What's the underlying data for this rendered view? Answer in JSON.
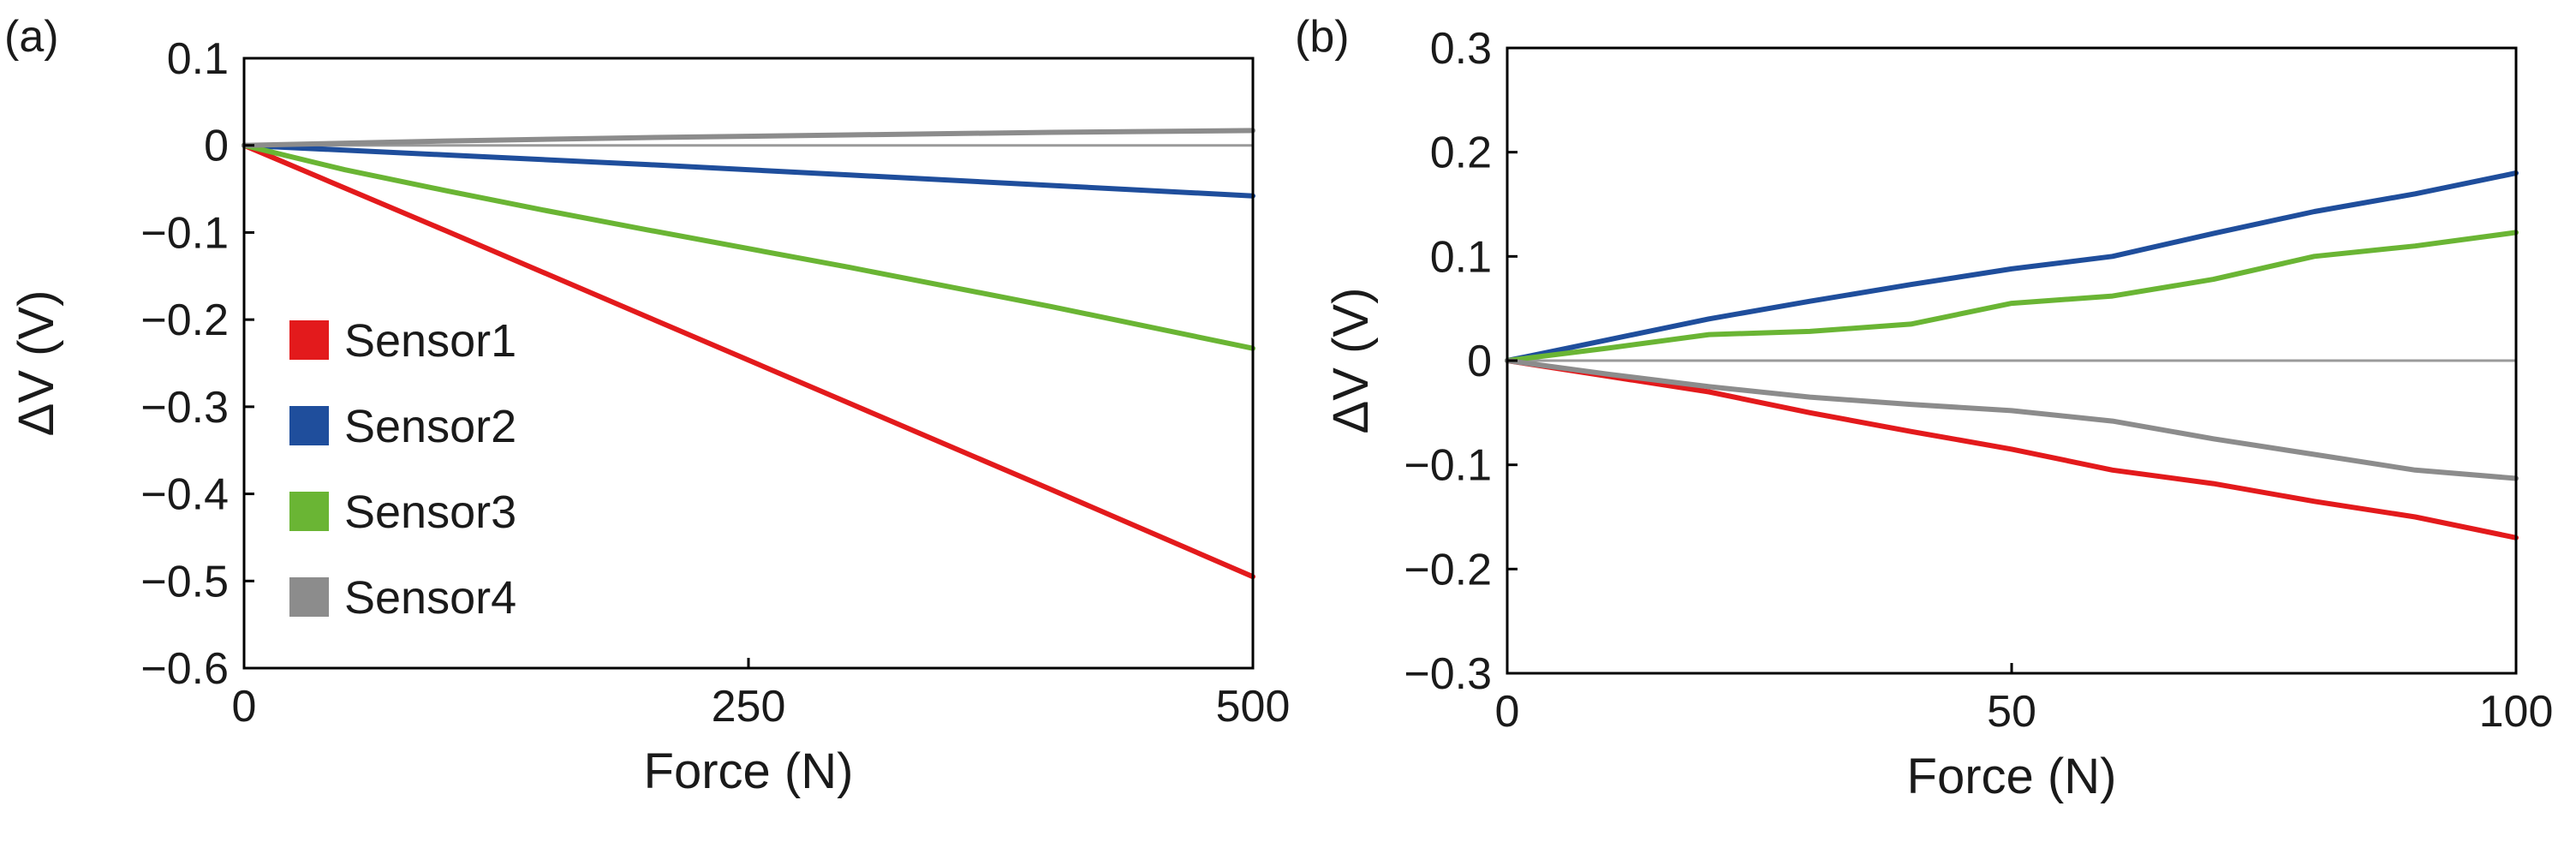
{
  "chart_data": [
    {
      "type": "line",
      "panel_label": "(a)",
      "xlabel": "Force (N)",
      "ylabel": "ΔV (V)",
      "xlim": [
        0,
        500
      ],
      "ylim": [
        -0.6,
        0.1
      ],
      "x_ticks": [
        0,
        250,
        500
      ],
      "x_tick_labels": [
        "0",
        "250",
        "500"
      ],
      "y_ticks": [
        0.1,
        0,
        -0.1,
        -0.2,
        -0.3,
        -0.4,
        -0.5,
        -0.6
      ],
      "y_tick_labels": [
        "0.1",
        "0",
        "−0.1",
        "−0.2",
        "−0.3",
        "−0.4",
        "−0.5",
        "−0.6"
      ],
      "zero_line": true,
      "legend_position": "center-left",
      "series": [
        {
          "name": "Sensor1",
          "color": "#e31a1c",
          "points": [
            [
              0,
              0
            ],
            [
              100,
              -0.098
            ],
            [
              200,
              -0.197
            ],
            [
              300,
              -0.296
            ],
            [
              400,
              -0.395
            ],
            [
              500,
              -0.495
            ]
          ]
        },
        {
          "name": "Sensor2",
          "color": "#1f4e9c",
          "points": [
            [
              0,
              0
            ],
            [
              100,
              -0.011
            ],
            [
              200,
              -0.022
            ],
            [
              300,
              -0.034
            ],
            [
              400,
              -0.046
            ],
            [
              500,
              -0.058
            ]
          ]
        },
        {
          "name": "Sensor3",
          "color": "#6ab534",
          "points": [
            [
              0,
              0
            ],
            [
              50,
              -0.028
            ],
            [
              100,
              -0.052
            ],
            [
              150,
              -0.075
            ],
            [
              200,
              -0.097
            ],
            [
              300,
              -0.14
            ],
            [
              400,
              -0.185
            ],
            [
              500,
              -0.233
            ]
          ]
        },
        {
          "name": "Sensor4",
          "color": "#8c8c8c",
          "points": [
            [
              0,
              0
            ],
            [
              100,
              0.005
            ],
            [
              200,
              0.009
            ],
            [
              300,
              0.012
            ],
            [
              400,
              0.015
            ],
            [
              500,
              0.017
            ]
          ]
        }
      ]
    },
    {
      "type": "line",
      "panel_label": "(b)",
      "xlabel": "Force (N)",
      "ylabel": "ΔV (V)",
      "xlim": [
        0,
        100
      ],
      "ylim": [
        -0.3,
        0.3
      ],
      "x_ticks": [
        0,
        50,
        100
      ],
      "x_tick_labels": [
        "0",
        "50",
        "100"
      ],
      "y_ticks": [
        0.3,
        0.2,
        0.1,
        0,
        -0.1,
        -0.2,
        -0.3
      ],
      "y_tick_labels": [
        "0.3",
        "0.2",
        "0.1",
        "0",
        "−0.1",
        "−0.2",
        "−0.3"
      ],
      "zero_line": true,
      "series": [
        {
          "name": "Sensor1",
          "color": "#e31a1c",
          "points": [
            [
              0,
              0
            ],
            [
              10,
              -0.015
            ],
            [
              20,
              -0.03
            ],
            [
              30,
              -0.05
            ],
            [
              40,
              -0.068
            ],
            [
              50,
              -0.085
            ],
            [
              60,
              -0.105
            ],
            [
              70,
              -0.118
            ],
            [
              80,
              -0.135
            ],
            [
              90,
              -0.15
            ],
            [
              100,
              -0.17
            ]
          ]
        },
        {
          "name": "Sensor2",
          "color": "#1f4e9c",
          "points": [
            [
              0,
              0
            ],
            [
              10,
              0.02
            ],
            [
              20,
              0.04
            ],
            [
              30,
              0.057
            ],
            [
              40,
              0.073
            ],
            [
              50,
              0.088
            ],
            [
              60,
              0.1
            ],
            [
              70,
              0.122
            ],
            [
              80,
              0.143
            ],
            [
              90,
              0.16
            ],
            [
              100,
              0.18
            ]
          ]
        },
        {
          "name": "Sensor3",
          "color": "#6ab534",
          "points": [
            [
              0,
              0
            ],
            [
              10,
              0.012
            ],
            [
              20,
              0.025
            ],
            [
              30,
              0.028
            ],
            [
              40,
              0.035
            ],
            [
              50,
              0.055
            ],
            [
              60,
              0.062
            ],
            [
              70,
              0.078
            ],
            [
              80,
              0.1
            ],
            [
              90,
              0.11
            ],
            [
              100,
              0.123
            ]
          ]
        },
        {
          "name": "Sensor4",
          "color": "#8c8c8c",
          "points": [
            [
              0,
              0
            ],
            [
              10,
              -0.013
            ],
            [
              20,
              -0.025
            ],
            [
              30,
              -0.035
            ],
            [
              40,
              -0.042
            ],
            [
              50,
              -0.048
            ],
            [
              60,
              -0.058
            ],
            [
              70,
              -0.075
            ],
            [
              80,
              -0.09
            ],
            [
              90,
              -0.105
            ],
            [
              100,
              -0.113
            ]
          ]
        }
      ]
    }
  ]
}
